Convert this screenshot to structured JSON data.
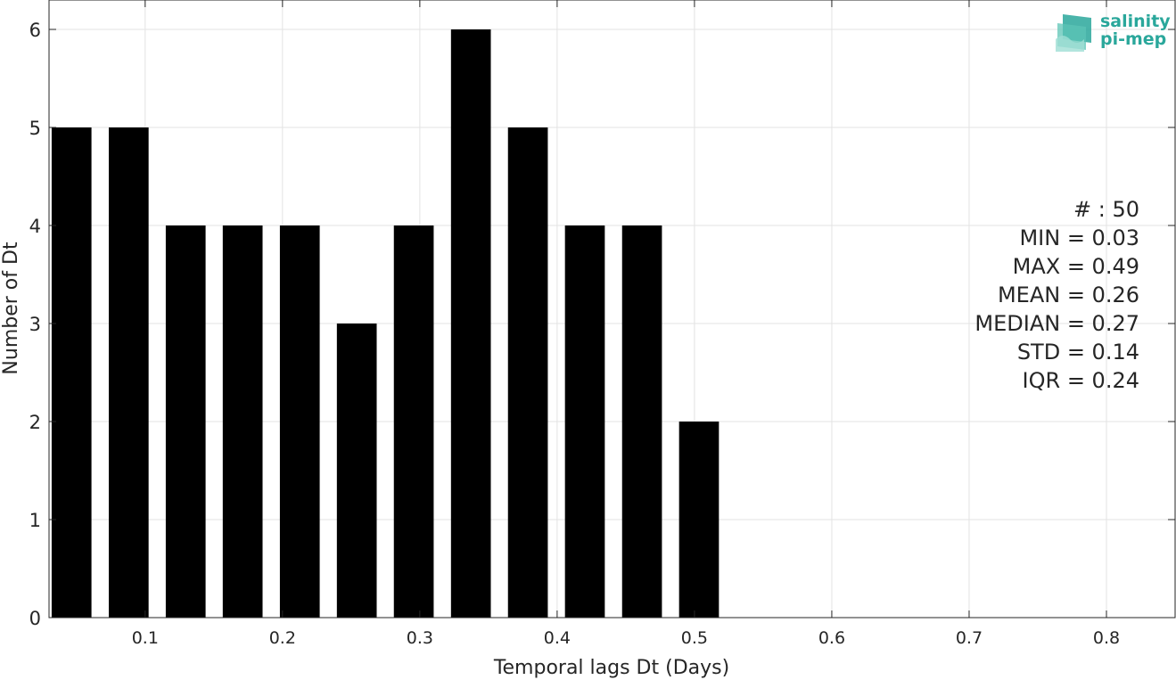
{
  "chart_data": {
    "type": "bar",
    "xlabel": "Temporal lags Dt (Days)",
    "ylabel": "Number of Dt",
    "xlim": [
      0.03,
      0.85
    ],
    "ylim": [
      0,
      6.3
    ],
    "xticks": [
      0.1,
      0.2,
      0.3,
      0.4,
      0.5,
      0.6,
      0.7,
      0.8
    ],
    "yticks": [
      0,
      1,
      2,
      3,
      4,
      5,
      6
    ],
    "bar_width": 0.029,
    "x": [
      0.0464,
      0.088,
      0.1295,
      0.171,
      0.2126,
      0.2541,
      0.2956,
      0.3372,
      0.3787,
      0.4202,
      0.4618,
      0.5033
    ],
    "values": [
      5,
      5,
      4,
      4,
      4,
      3,
      4,
      6,
      5,
      4,
      4,
      2
    ],
    "bar_color": "#000000",
    "grid": true,
    "stats": [
      "# : 50",
      "MIN = 0.03",
      "MAX =  0.49",
      "MEAN = 0.26",
      "MEDIAN = 0.27",
      "STD = 0.14",
      "IQR = 0.24"
    ]
  },
  "logo": {
    "line1": "salinity",
    "line2": "pi-mep",
    "color": "#2aa79b"
  }
}
